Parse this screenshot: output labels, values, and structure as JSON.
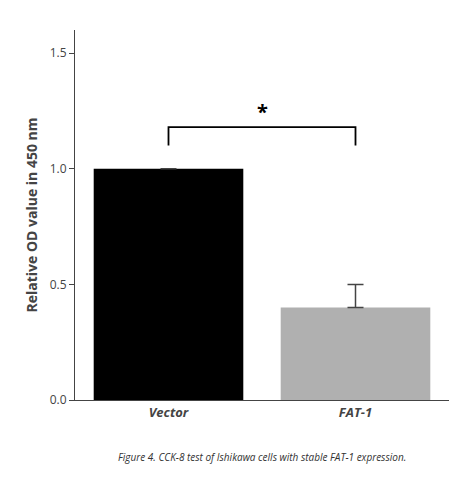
{
  "chart_data": {
    "type": "bar",
    "categories": [
      "Vector",
      "FAT-1"
    ],
    "values": [
      1.0,
      0.4
    ],
    "errors": [
      0.0,
      0.1
    ],
    "colors": [
      "#000000",
      "#b0b0b0"
    ],
    "ylabel": "Relative OD value in 450 nm",
    "ylim": [
      0,
      1.6
    ],
    "yticks": [
      {
        "value": 0.0,
        "label": "0.0"
      },
      0.5,
      {
        "value": 1.0,
        "label": "1.0"
      },
      1.5
    ],
    "grid": false,
    "significance": {
      "text": "*",
      "y": 1.18,
      "bar_y": 1.1,
      "color": "#000000"
    },
    "caption": "Figure 4. CCK-8 test of Ishikawa cells with stable FAT-1 expression."
  }
}
